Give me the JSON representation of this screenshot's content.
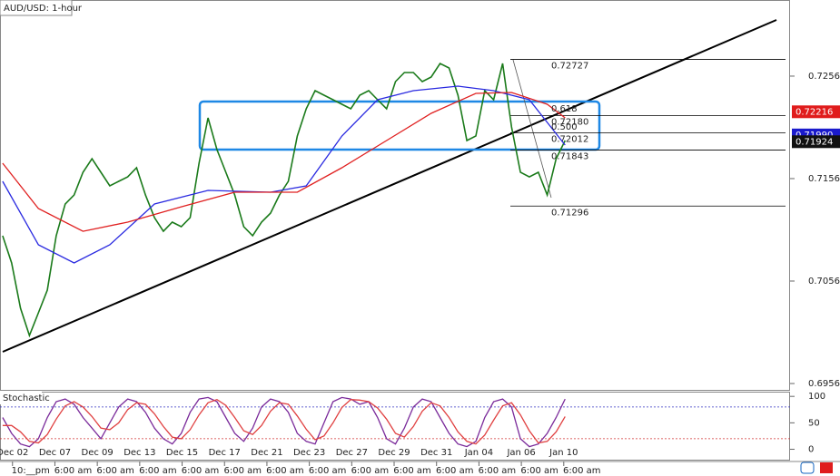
{
  "chart_data": [
    {
      "type": "line",
      "title": "AUD/USD: 1-hour",
      "xlim": [
        -0.3,
        88.2
      ],
      "xticks": [
        {
          "value": 1.1,
          "label": "Dec 02"
        },
        {
          "value": 5.85,
          "label": "Dec 07"
        },
        {
          "value": 10.6,
          "label": "Dec 09"
        },
        {
          "value": 15.35,
          "label": "Dec 13"
        },
        {
          "value": 20.1,
          "label": "Dec 15"
        },
        {
          "value": 24.85,
          "label": "Dec 17"
        },
        {
          "value": 29.6,
          "label": "Dec 21"
        },
        {
          "value": 34.35,
          "label": "Dec 23"
        },
        {
          "value": 39.1,
          "label": "Dec 27"
        },
        {
          "value": 43.85,
          "label": "Dec 29"
        },
        {
          "value": 48.6,
          "label": "Dec 31"
        },
        {
          "value": 53.35,
          "label": "Jan 04"
        },
        {
          "value": 58.1,
          "label": "Jan 06"
        },
        {
          "value": 62.85,
          "label": "Jan 10"
        }
      ],
      "time_labels": [
        "10:__pm",
        "6:00 am",
        "6:00 am",
        "6:00 am",
        "6:00 am",
        "6:00 am",
        "6:00 am",
        "6:00 am",
        "6:00 am",
        "6:00 am",
        "6:00 am",
        "6:00 am",
        "6:00 am",
        "6:00 am"
      ],
      "ylim": [
        0.69502,
        0.73307
      ],
      "yticks": [
        0.72564,
        0.71564,
        0.70564,
        0.69564
      ],
      "series": [
        {
          "color": "#1a7a1a",
          "x": [
            0,
            1,
            2,
            3,
            4,
            5,
            6,
            7,
            8,
            9,
            10,
            11,
            12,
            13,
            14,
            15,
            16,
            17,
            18,
            19,
            20,
            21,
            22,
            23,
            24,
            25,
            26,
            27,
            28,
            29,
            30,
            31,
            32,
            33,
            34,
            35,
            36,
            37,
            38,
            39,
            40,
            41,
            42,
            43,
            44,
            45,
            46,
            47,
            48,
            49,
            50,
            51,
            52,
            53,
            54,
            55,
            56,
            57,
            58,
            59,
            60,
            61,
            62,
            63
          ],
          "values": [
            0.71006,
            0.70741,
            0.70298,
            0.70033,
            0.70254,
            0.70475,
            0.71006,
            0.71316,
            0.71404,
            0.71626,
            0.71758,
            0.71626,
            0.71493,
            0.71537,
            0.71581,
            0.7167,
            0.71404,
            0.71183,
            0.7105,
            0.71139,
            0.71095,
            0.71183,
            0.71714,
            0.72157,
            0.71847,
            0.71626,
            0.71404,
            0.71095,
            0.71006,
            0.71139,
            0.71227,
            0.71404,
            0.71537,
            0.7198,
            0.72245,
            0.72422,
            0.72378,
            0.72334,
            0.72289,
            0.72245,
            0.72378,
            0.72422,
            0.72334,
            0.72245,
            0.72511,
            0.72599,
            0.72599,
            0.72511,
            0.72555,
            0.72688,
            0.72643,
            0.72378,
            0.71935,
            0.7198,
            0.72422,
            0.72334,
            0.72688,
            0.72068,
            0.71626,
            0.71581,
            0.71626,
            0.71404,
            0.71758,
            0.71935
          ]
        },
        {
          "color": "#2a2ae0",
          "x": [
            0,
            4,
            8,
            12,
            17,
            23,
            30,
            34,
            38,
            42,
            46,
            51,
            55,
            59,
            63
          ],
          "values": [
            0.71537,
            0.70918,
            0.70741,
            0.70918,
            0.71316,
            0.71449,
            0.71431,
            0.71493,
            0.7198,
            0.72334,
            0.72422,
            0.72466,
            0.72422,
            0.72334,
            0.71891
          ]
        },
        {
          "color": "#e02020",
          "x": [
            0,
            4,
            9,
            14,
            20,
            26,
            33,
            38,
            43,
            48,
            53,
            57,
            61,
            63
          ],
          "values": [
            0.71714,
            0.71272,
            0.7105,
            0.71139,
            0.71289,
            0.71431,
            0.71431,
            0.7167,
            0.71935,
            0.72201,
            0.72396,
            0.72404,
            0.72289,
            0.72157
          ]
        }
      ],
      "fib_levels": [
        {
          "value": 0.72727,
          "label": "0.72727"
        },
        {
          "value": 0.7218,
          "label": "0.72180"
        },
        {
          "value": 0.72012,
          "label": "0.72012"
        },
        {
          "value": 0.71843,
          "label": "0.71843"
        },
        {
          "value": 0.71296,
          "label": "0.71296"
        }
      ],
      "fib_ratios": [
        "0.618",
        "0.500"
      ],
      "price_tags": [
        {
          "value": 0.7199,
          "label": "0.71990",
          "color": "#1a1acc"
        },
        {
          "value": 0.72216,
          "label": "0.72216",
          "color": "#e01c1c"
        },
        {
          "value": 0.71924,
          "label": "0.71924",
          "color": "#111111"
        }
      ]
    },
    {
      "type": "line",
      "title": "Stochastic",
      "xlim": [
        -0.3,
        88.2
      ],
      "ylim": [
        -21.4,
        108.9
      ],
      "yticks": [
        100,
        50,
        0
      ],
      "levels": [
        80,
        20
      ],
      "series": [
        {
          "color": "#7a2a9a",
          "x": [
            0,
            1,
            2,
            3,
            4,
            5,
            6,
            7,
            8,
            9,
            10,
            11,
            12,
            13,
            14,
            15,
            16,
            17,
            18,
            19,
            20,
            21,
            22,
            23,
            24,
            25,
            26,
            27,
            28,
            29,
            30,
            31,
            32,
            33,
            34,
            35,
            36,
            37,
            38,
            39,
            40,
            41,
            42,
            43,
            44,
            45,
            46,
            47,
            48,
            49,
            50,
            51,
            52,
            53,
            54,
            55,
            56,
            57,
            58,
            59,
            60,
            61,
            62,
            63
          ],
          "values": [
            60,
            30,
            10,
            5,
            20,
            60,
            90,
            95,
            85,
            60,
            40,
            20,
            50,
            80,
            95,
            90,
            70,
            40,
            20,
            10,
            30,
            70,
            95,
            98,
            90,
            60,
            30,
            15,
            40,
            80,
            95,
            90,
            70,
            30,
            15,
            10,
            50,
            90,
            98,
            95,
            85,
            90,
            60,
            20,
            10,
            40,
            80,
            95,
            90,
            60,
            30,
            10,
            5,
            15,
            60,
            90,
            95,
            80,
            20,
            5,
            10,
            30,
            60,
            95
          ]
        },
        {
          "color": "#e04040",
          "x": [
            0,
            1,
            2,
            3,
            4,
            5,
            6,
            7,
            8,
            9,
            10,
            11,
            12,
            13,
            14,
            15,
            16,
            17,
            18,
            19,
            20,
            21,
            22,
            23,
            24,
            25,
            26,
            27,
            28,
            29,
            30,
            31,
            32,
            33,
            34,
            35,
            36,
            37,
            38,
            39,
            40,
            41,
            42,
            43,
            44,
            45,
            46,
            47,
            48,
            49,
            50,
            51,
            52,
            53,
            54,
            55,
            56,
            57,
            58,
            59,
            60,
            61,
            62,
            63
          ],
          "values": [
            45,
            45,
            33,
            15,
            12,
            28,
            57,
            82,
            90,
            80,
            62,
            40,
            37,
            50,
            75,
            88,
            85,
            67,
            43,
            23,
            20,
            37,
            65,
            88,
            94,
            83,
            60,
            35,
            28,
            45,
            72,
            88,
            85,
            63,
            38,
            18,
            25,
            50,
            79,
            94,
            93,
            90,
            78,
            57,
            30,
            23,
            43,
            72,
            88,
            82,
            60,
            33,
            15,
            10,
            27,
            55,
            82,
            88,
            65,
            35,
            12,
            15,
            33,
            62
          ]
        }
      ]
    }
  ]
}
